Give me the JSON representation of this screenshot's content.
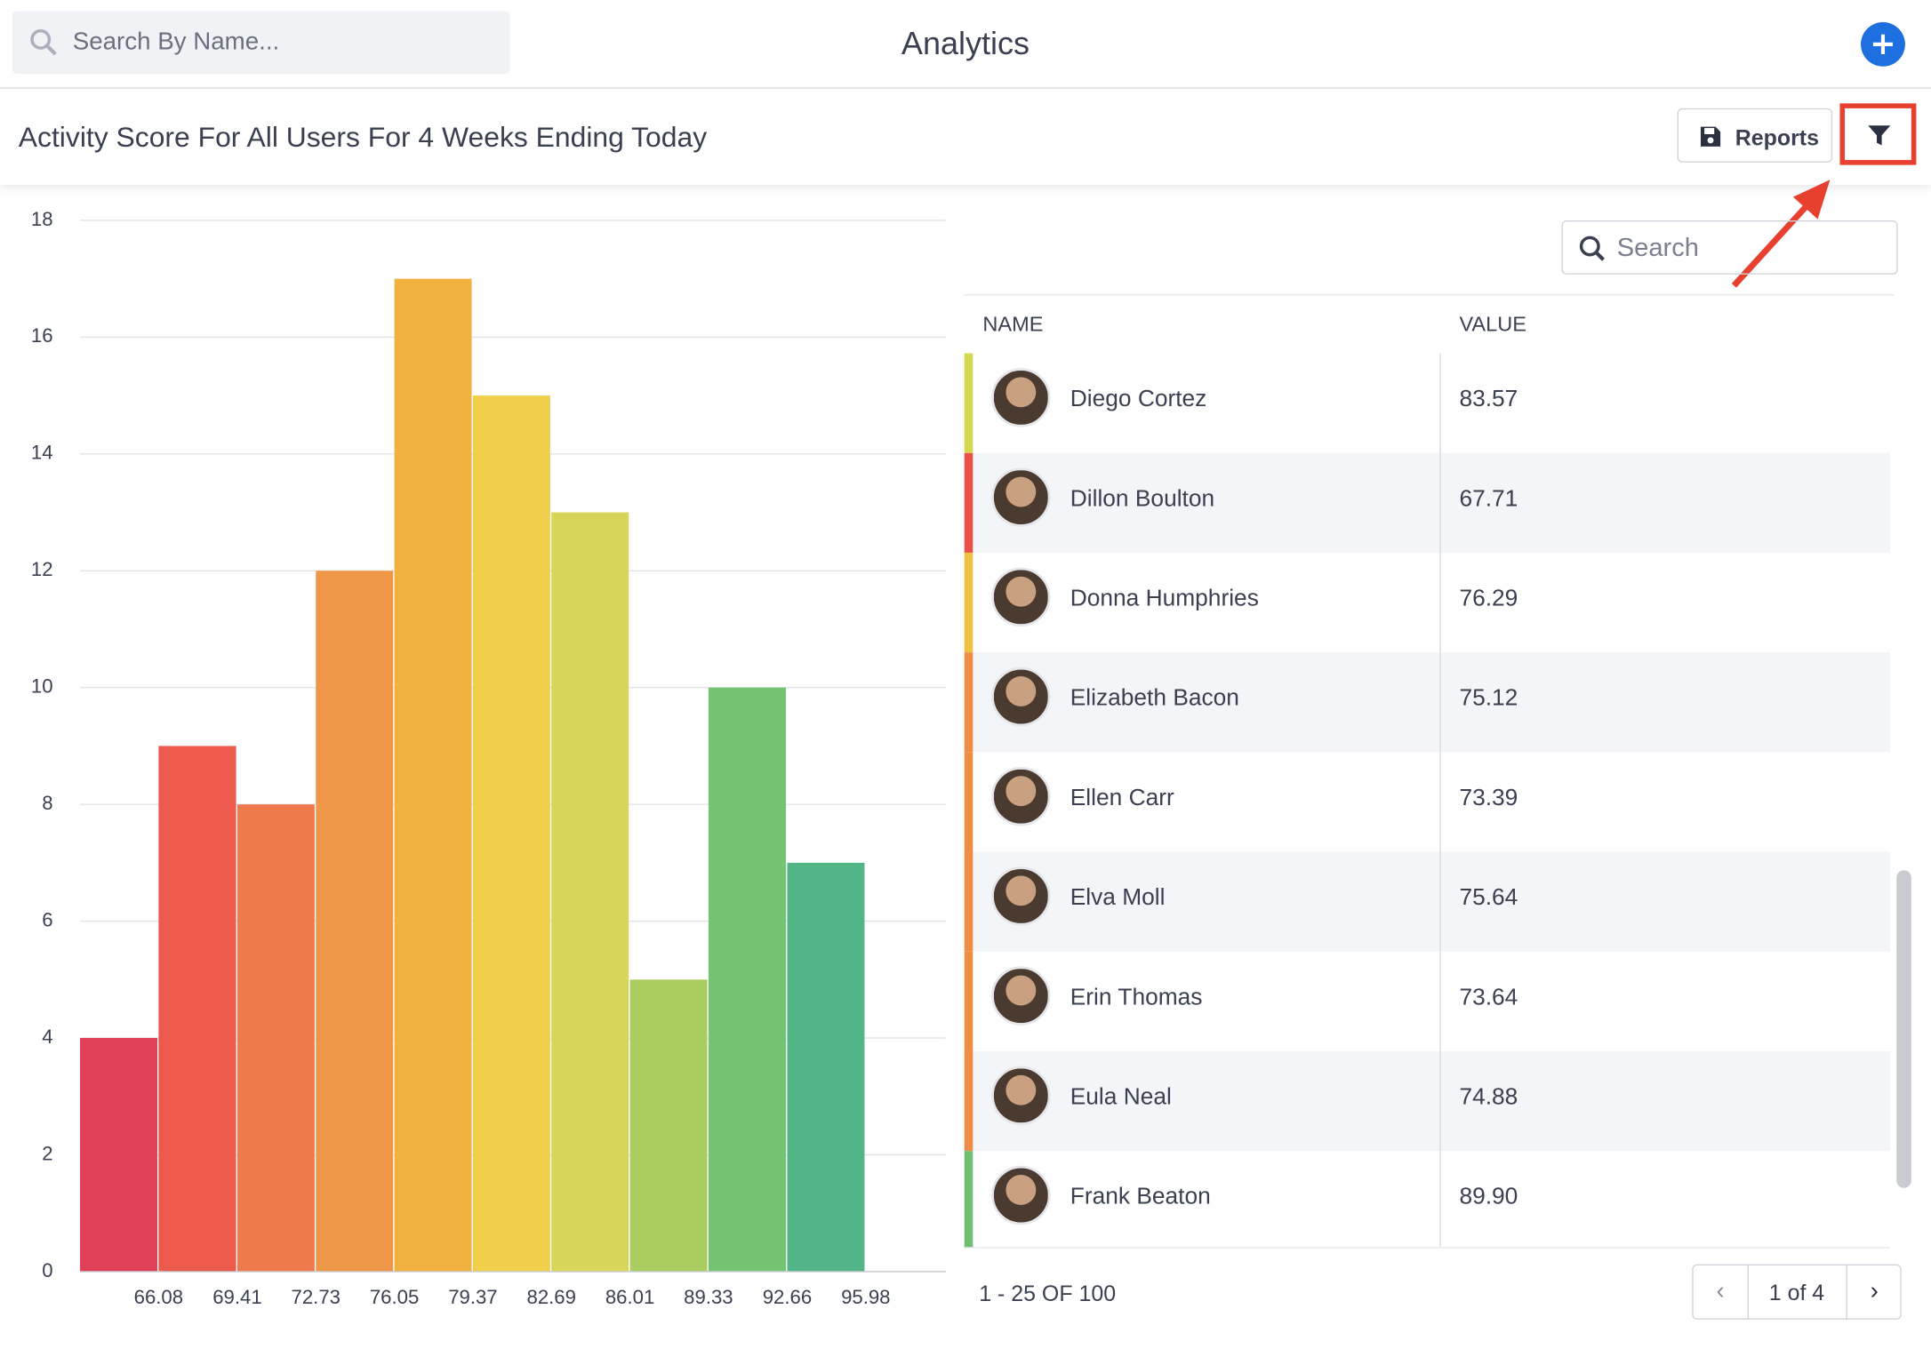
{
  "header": {
    "search_placeholder": "Search By Name...",
    "title": "Analytics"
  },
  "toolbar": {
    "subtitle": "Activity Score For All Users For 4 Weeks Ending Today",
    "reports_button": "Reports"
  },
  "chart_data": {
    "type": "histogram",
    "bins": [
      62.76,
      66.08,
      69.41,
      72.73,
      76.05,
      79.37,
      82.69,
      86.01,
      89.33,
      92.66,
      95.98
    ],
    "counts": [
      4,
      9,
      8,
      12,
      17,
      15,
      13,
      5,
      10,
      7
    ],
    "colors": [
      "#e03f58",
      "#ec5a4e",
      "#ee7a4e",
      "#ef9748",
      "#f0b13e",
      "#f0d04a",
      "#d9d45a",
      "#abcc5e",
      "#74c474",
      "#52b585"
    ],
    "ylim": [
      0,
      18
    ],
    "yticks": [
      0,
      2,
      4,
      6,
      8,
      10,
      12,
      14,
      16,
      18
    ],
    "xticks": [
      66.08,
      69.41,
      72.73,
      76.05,
      79.37,
      82.69,
      86.01,
      89.33,
      92.66,
      95.98
    ],
    "grid": true
  },
  "table": {
    "search_placeholder": "Search",
    "columns": [
      "NAME",
      "VALUE"
    ],
    "rows": [
      {
        "name": "Diego Cortez",
        "value": "83.57",
        "color": "#d4d84e"
      },
      {
        "name": "Dillon Boulton",
        "value": "67.71",
        "color": "#e8504a"
      },
      {
        "name": "Donna Humphries",
        "value": "76.29",
        "color": "#f0c040"
      },
      {
        "name": "Elizabeth Bacon",
        "value": "75.12",
        "color": "#ee8c45"
      },
      {
        "name": "Ellen Carr",
        "value": "73.39",
        "color": "#ee8c45"
      },
      {
        "name": "Elva Moll",
        "value": "75.64",
        "color": "#ee8c45"
      },
      {
        "name": "Erin Thomas",
        "value": "73.64",
        "color": "#ee8c45"
      },
      {
        "name": "Eula Neal",
        "value": "74.88",
        "color": "#ee8c45"
      },
      {
        "name": "Frank Beaton",
        "value": "89.90",
        "color": "#6cc070"
      }
    ],
    "pagination": {
      "range": "1 - 25 OF 100",
      "page": "1 of 4"
    }
  }
}
